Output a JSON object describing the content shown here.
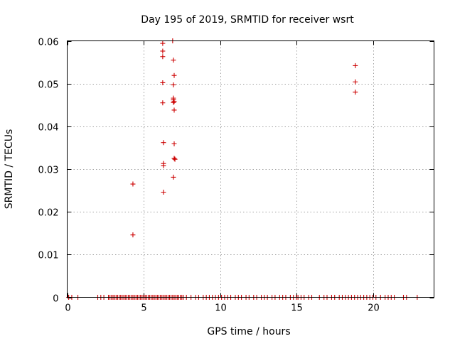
{
  "chart_data": {
    "type": "scatter",
    "title": "Day 195 of 2019, SRMTID for receiver wsrt",
    "xlabel": "GPS time / hours",
    "ylabel": "SRMTID / TECUs",
    "xlim": [
      0,
      24
    ],
    "ylim": [
      0,
      0.06
    ],
    "x_ticks": [
      0,
      5,
      10,
      15,
      20
    ],
    "x_tick_labels": [
      "0",
      "5",
      "10",
      "15",
      "20"
    ],
    "y_ticks": [
      0,
      0.01,
      0.02,
      0.03,
      0.04,
      0.05,
      0.06
    ],
    "y_tick_labels": [
      "0",
      "0.01",
      "0.02",
      "0.03",
      "0.04",
      "0.05",
      "0.06"
    ],
    "grid": true,
    "marker": "+",
    "color": "#cc0000",
    "series": [
      {
        "name": "SRMTID",
        "points": [
          [
            4.3,
            0.0265
          ],
          [
            4.3,
            0.0146
          ],
          [
            6.25,
            0.0594
          ],
          [
            6.25,
            0.0576
          ],
          [
            6.25,
            0.0563
          ],
          [
            6.25,
            0.0502
          ],
          [
            6.25,
            0.0455
          ],
          [
            6.3,
            0.0362
          ],
          [
            6.3,
            0.0313
          ],
          [
            6.3,
            0.0308
          ],
          [
            6.3,
            0.0246
          ],
          [
            6.9,
            0.06
          ],
          [
            6.95,
            0.0555
          ],
          [
            7.0,
            0.0519
          ],
          [
            6.95,
            0.0497
          ],
          [
            6.95,
            0.0466
          ],
          [
            6.95,
            0.0462
          ],
          [
            7.0,
            0.0458
          ],
          [
            6.95,
            0.0456
          ],
          [
            7.0,
            0.0438
          ],
          [
            7.0,
            0.0359
          ],
          [
            7.0,
            0.0325
          ],
          [
            7.05,
            0.0323
          ],
          [
            6.95,
            0.0281
          ],
          [
            18.85,
            0.0542
          ],
          [
            18.85,
            0.0504
          ],
          [
            18.85,
            0.048
          ],
          [
            0.1,
            0
          ],
          [
            0.3,
            0
          ],
          [
            0.7,
            0
          ],
          [
            2.0,
            0
          ],
          [
            2.2,
            0
          ],
          [
            2.4,
            0
          ],
          [
            2.7,
            0
          ],
          [
            2.8,
            0
          ],
          [
            2.9,
            0
          ],
          [
            3.0,
            0
          ],
          [
            3.1,
            0
          ],
          [
            3.2,
            0
          ],
          [
            3.3,
            0
          ],
          [
            3.4,
            0
          ],
          [
            3.5,
            0
          ],
          [
            3.6,
            0
          ],
          [
            3.7,
            0
          ],
          [
            3.8,
            0
          ],
          [
            3.9,
            0
          ],
          [
            4.0,
            0
          ],
          [
            4.1,
            0
          ],
          [
            4.2,
            0
          ],
          [
            4.3,
            0
          ],
          [
            4.4,
            0
          ],
          [
            4.5,
            0
          ],
          [
            4.6,
            0
          ],
          [
            4.7,
            0
          ],
          [
            4.8,
            0
          ],
          [
            4.9,
            0
          ],
          [
            5.0,
            0
          ],
          [
            5.1,
            0
          ],
          [
            5.2,
            0
          ],
          [
            5.3,
            0
          ],
          [
            5.4,
            0
          ],
          [
            5.5,
            0
          ],
          [
            5.6,
            0
          ],
          [
            5.7,
            0
          ],
          [
            5.8,
            0
          ],
          [
            5.9,
            0
          ],
          [
            6.0,
            0
          ],
          [
            6.1,
            0
          ],
          [
            6.2,
            0
          ],
          [
            6.3,
            0
          ],
          [
            6.4,
            0
          ],
          [
            6.5,
            0
          ],
          [
            6.6,
            0
          ],
          [
            6.7,
            0
          ],
          [
            6.8,
            0
          ],
          [
            6.9,
            0
          ],
          [
            7.0,
            0
          ],
          [
            7.1,
            0
          ],
          [
            7.2,
            0
          ],
          [
            7.3,
            0
          ],
          [
            7.4,
            0
          ],
          [
            7.5,
            0
          ],
          [
            7.6,
            0
          ],
          [
            7.8,
            0
          ],
          [
            8.1,
            0
          ],
          [
            8.4,
            0
          ],
          [
            8.6,
            0
          ],
          [
            8.9,
            0
          ],
          [
            9.1,
            0
          ],
          [
            9.3,
            0
          ],
          [
            9.5,
            0
          ],
          [
            9.7,
            0
          ],
          [
            9.9,
            0
          ],
          [
            10.1,
            0
          ],
          [
            10.3,
            0
          ],
          [
            10.5,
            0
          ],
          [
            10.7,
            0
          ],
          [
            11.0,
            0
          ],
          [
            11.2,
            0
          ],
          [
            11.4,
            0
          ],
          [
            11.7,
            0
          ],
          [
            11.9,
            0
          ],
          [
            12.2,
            0
          ],
          [
            12.4,
            0
          ],
          [
            12.7,
            0
          ],
          [
            12.9,
            0
          ],
          [
            13.1,
            0
          ],
          [
            13.4,
            0
          ],
          [
            13.6,
            0
          ],
          [
            13.9,
            0
          ],
          [
            14.1,
            0
          ],
          [
            14.3,
            0
          ],
          [
            14.6,
            0
          ],
          [
            14.8,
            0
          ],
          [
            15.0,
            0
          ],
          [
            15.1,
            0
          ],
          [
            15.3,
            0
          ],
          [
            15.5,
            0
          ],
          [
            15.8,
            0
          ],
          [
            16.0,
            0
          ],
          [
            16.5,
            0
          ],
          [
            16.8,
            0
          ],
          [
            17.0,
            0
          ],
          [
            17.3,
            0
          ],
          [
            17.5,
            0
          ],
          [
            17.8,
            0
          ],
          [
            18.0,
            0
          ],
          [
            18.2,
            0
          ],
          [
            18.4,
            0
          ],
          [
            18.6,
            0
          ],
          [
            18.8,
            0
          ],
          [
            19.0,
            0
          ],
          [
            19.2,
            0
          ],
          [
            19.4,
            0
          ],
          [
            19.6,
            0
          ],
          [
            19.8,
            0
          ],
          [
            20.0,
            0
          ],
          [
            20.2,
            0
          ],
          [
            20.5,
            0
          ],
          [
            20.8,
            0
          ],
          [
            21.0,
            0
          ],
          [
            21.2,
            0
          ],
          [
            21.4,
            0
          ],
          [
            22.0,
            0
          ],
          [
            22.2,
            0
          ],
          [
            22.9,
            0
          ]
        ]
      }
    ]
  }
}
